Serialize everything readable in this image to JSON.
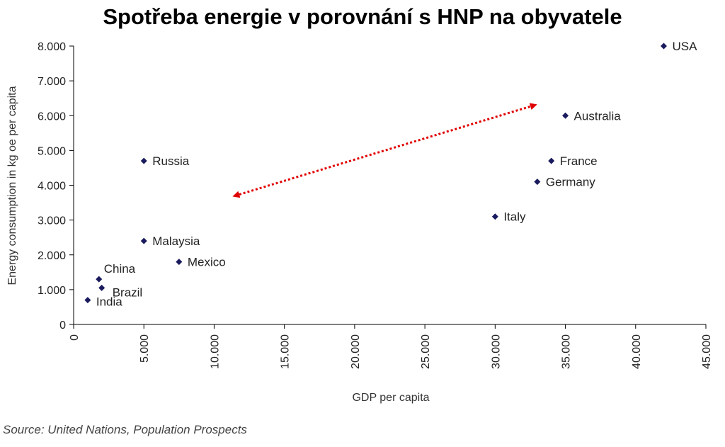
{
  "title": "Spotřeba energie v porovnání s HNP na obyvatele",
  "source": "Source: United Nations, Population Prospects",
  "colors": {
    "point": "#1a1a5e",
    "arrow": "#e00000",
    "axis": "#000000"
  },
  "chart_data": {
    "type": "scatter",
    "xlabel": "GDP per capita",
    "ylabel": "Energy consumption in kg oe per capita",
    "xlim": [
      0,
      45000
    ],
    "ylim": [
      0,
      8000
    ],
    "xticks": [
      0,
      5000,
      10000,
      15000,
      20000,
      25000,
      30000,
      35000,
      40000,
      45000
    ],
    "xtick_labels": [
      "0",
      "5.000",
      "10.000",
      "15.000",
      "20.000",
      "25.000",
      "30.000",
      "35.000",
      "40.000",
      "45.000"
    ],
    "yticks": [
      0,
      1000,
      2000,
      3000,
      4000,
      5000,
      6000,
      7000,
      8000
    ],
    "ytick_labels": [
      "0",
      "1.000",
      "2.000",
      "3.000",
      "4.000",
      "5.000",
      "6.000",
      "7.000",
      "8.000"
    ],
    "grid": false,
    "points": [
      {
        "label": "USA",
        "x": 42000,
        "y": 8000
      },
      {
        "label": "Australia",
        "x": 35000,
        "y": 6000
      },
      {
        "label": "France",
        "x": 34000,
        "y": 4700
      },
      {
        "label": "Germany",
        "x": 33000,
        "y": 4100
      },
      {
        "label": "Italy",
        "x": 30000,
        "y": 3100
      },
      {
        "label": "Russia",
        "x": 5000,
        "y": 4700
      },
      {
        "label": "Malaysia",
        "x": 5000,
        "y": 2400
      },
      {
        "label": "Mexico",
        "x": 7500,
        "y": 1800
      },
      {
        "label": "China",
        "x": 1800,
        "y": 1300
      },
      {
        "label": "Brazil",
        "x": 2000,
        "y": 1050
      },
      {
        "label": "India",
        "x": 1000,
        "y": 700
      }
    ],
    "annotations": [
      {
        "type": "double-arrow",
        "style": "dotted",
        "color": "#e00000",
        "from": {
          "x": 11500,
          "y": 3700
        },
        "to": {
          "x": 32800,
          "y": 6300
        }
      }
    ]
  }
}
